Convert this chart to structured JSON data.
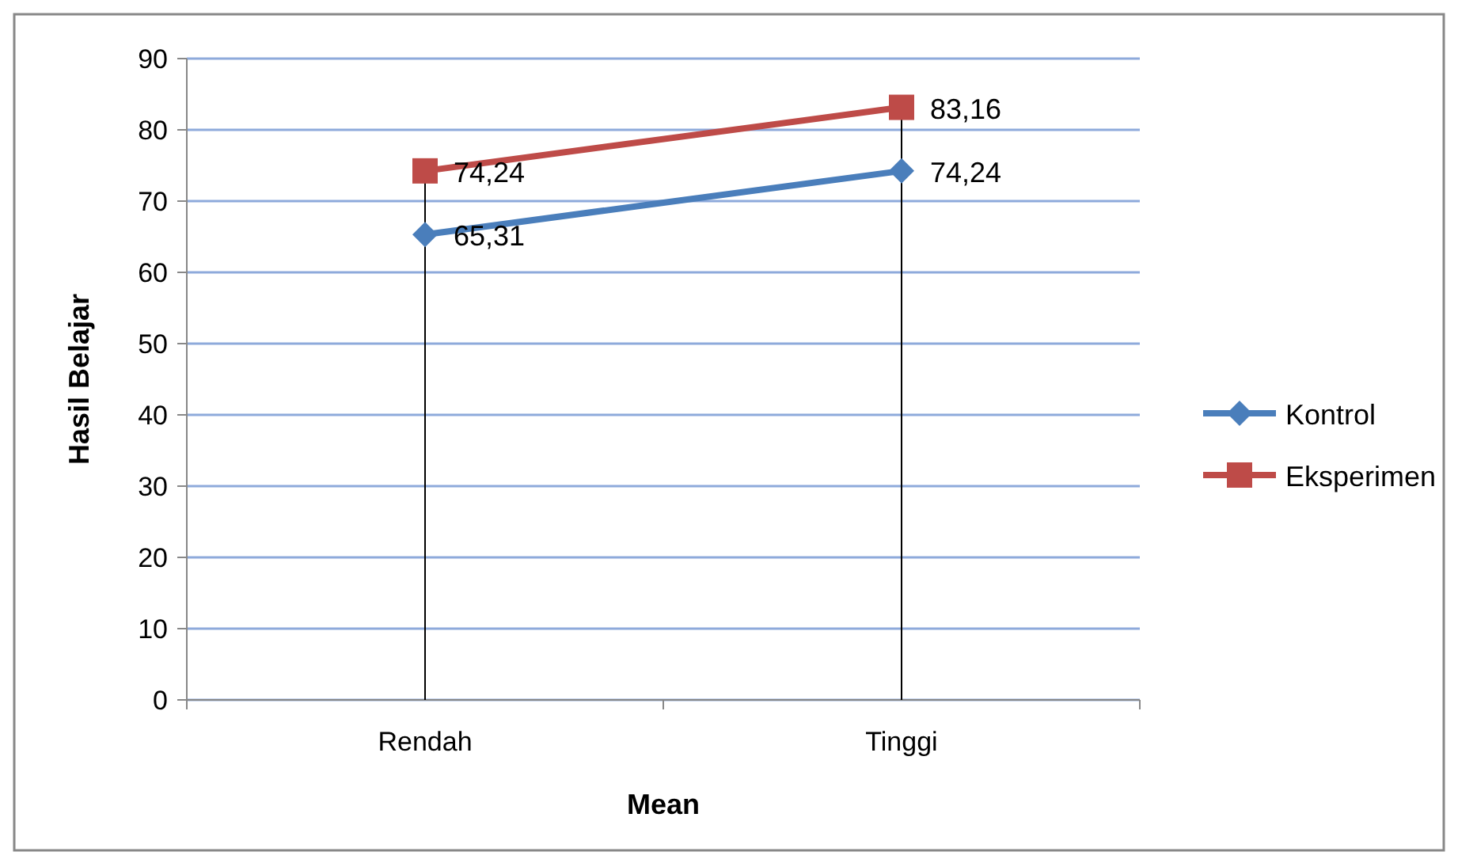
{
  "chart_data": {
    "type": "line",
    "xlabel": "Mean",
    "ylabel": "Hasil Belajar",
    "categories": [
      "Rendah",
      "Tinggi"
    ],
    "series": [
      {
        "name": "Kontrol",
        "color": "#4a7ebb",
        "values": [
          65.31,
          74.24
        ],
        "marker": "diamond",
        "value_labels": [
          "65,31",
          "74,24"
        ]
      },
      {
        "name": "Eksperimen",
        "color": "#be4b48",
        "values": [
          74.24,
          83.16
        ],
        "marker": "square",
        "value_labels": [
          "74,24",
          "83,16"
        ]
      }
    ],
    "ylim": [
      0,
      90
    ],
    "yticks": [
      0,
      10,
      20,
      30,
      40,
      50,
      60,
      70,
      80,
      90
    ],
    "grid": "y",
    "legend": "right",
    "ref_lines": [
      {
        "axis": "x",
        "value": "Rendah",
        "color": "#000000"
      },
      {
        "axis": "x",
        "value": "Tinggi",
        "color": "#000000"
      }
    ]
  }
}
